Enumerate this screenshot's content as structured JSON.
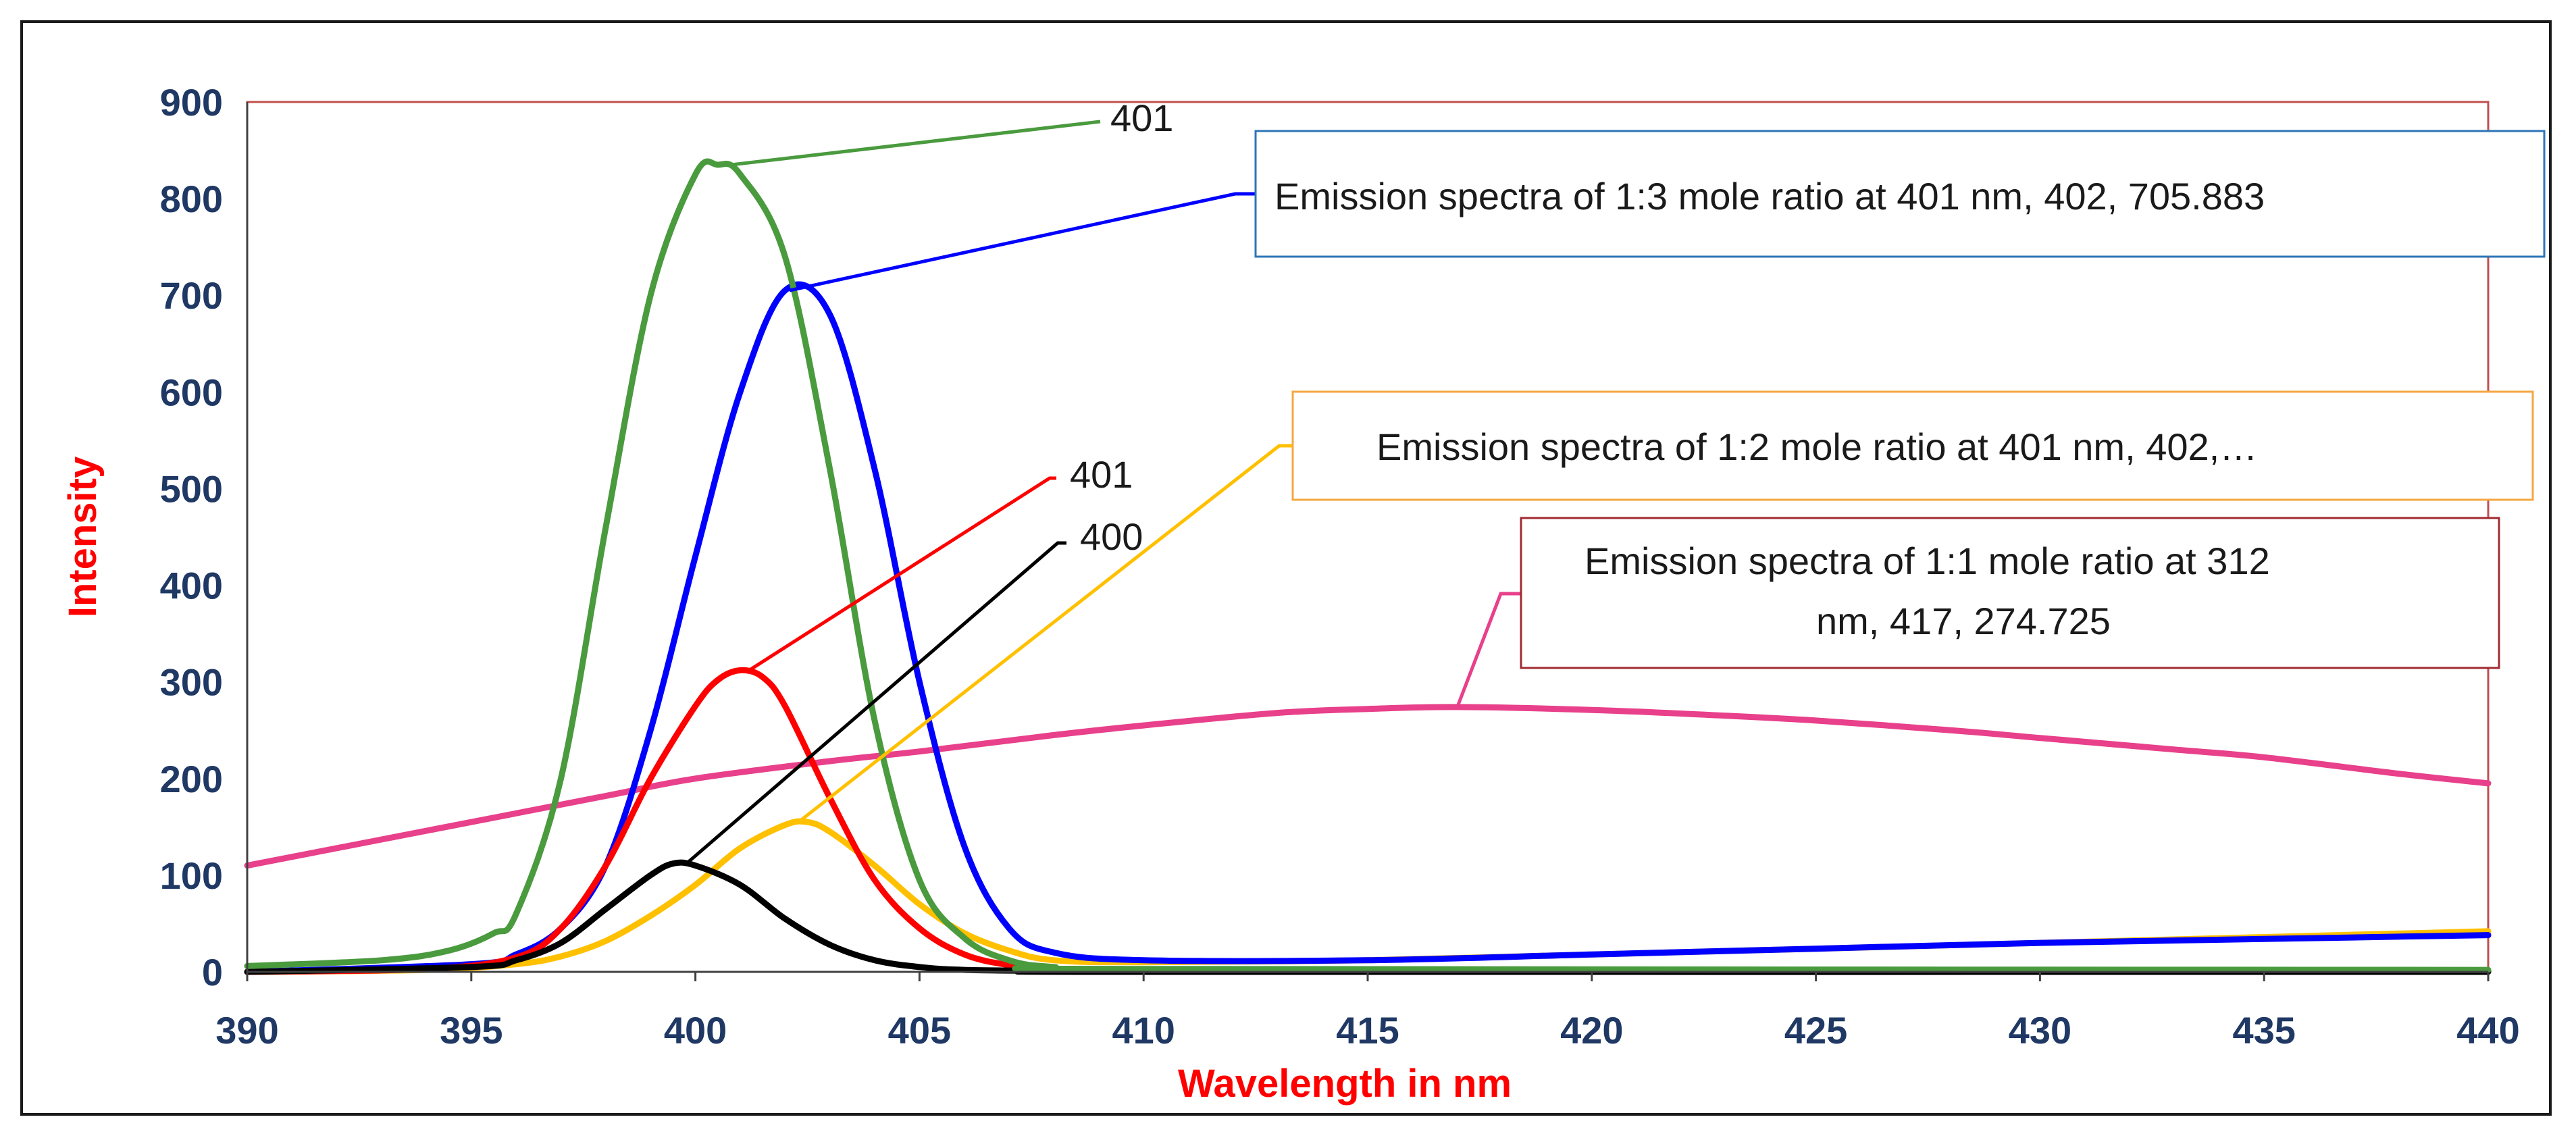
{
  "chart_data": {
    "type": "line",
    "title": "",
    "xlabel": "Wavelength in nm",
    "ylabel": "Intensity",
    "xlim": [
      390,
      440
    ],
    "ylim": [
      0,
      900
    ],
    "xticks": [
      390,
      395,
      400,
      405,
      410,
      415,
      420,
      425,
      430,
      435,
      440
    ],
    "yticks": [
      0,
      100,
      200,
      300,
      400,
      500,
      600,
      700,
      800,
      900
    ],
    "legend": "none",
    "series": [
      {
        "name": "1:1 mole ratio",
        "color": "#e8408a",
        "x": [
          390,
          395,
          398,
          400,
          403,
          405,
          408,
          410,
          413,
          415,
          417,
          420,
          423,
          425,
          428,
          430,
          433,
          435,
          438,
          440
        ],
        "y": [
          110,
          155,
          182,
          200,
          218,
          228,
          245,
          255,
          268,
          272,
          274,
          271,
          265,
          260,
          250,
          242,
          230,
          222,
          205,
          195
        ]
      },
      {
        "name": "1:2 mole ratio",
        "color": "#ffc000",
        "x": [
          390,
          394,
          396,
          397,
          398,
          399,
          400,
          401,
          402,
          402.5,
          403,
          404,
          405,
          406,
          407,
          408,
          410,
          415,
          420,
          425,
          430,
          435,
          440
        ],
        "y": [
          0,
          2,
          8,
          16,
          32,
          58,
          90,
          128,
          152,
          155,
          145,
          110,
          70,
          40,
          22,
          12,
          10,
          12,
          18,
          24,
          30,
          36,
          42
        ]
      },
      {
        "name": "1:3 mole ratio",
        "color": "#0000ff",
        "x": [
          390,
          395,
          396,
          397,
          398,
          399,
          400,
          401,
          402,
          403,
          404,
          405,
          406,
          407,
          408,
          410,
          415,
          420,
          425,
          430,
          435,
          440
        ],
        "y": [
          0,
          8,
          18,
          45,
          110,
          250,
          430,
          600,
          705,
          680,
          520,
          300,
          130,
          45,
          20,
          12,
          12,
          18,
          24,
          30,
          34,
          38
        ]
      },
      {
        "name": "401 red",
        "color": "#ff0000",
        "x": [
          390,
          394,
          396,
          397,
          398,
          399,
          400,
          400.5,
          401,
          401.5,
          402,
          403,
          404,
          405,
          406,
          407,
          408,
          410,
          440
        ],
        "y": [
          0,
          3,
          15,
          45,
          110,
          200,
          275,
          302,
          312,
          305,
          275,
          180,
          95,
          45,
          18,
          7,
          3,
          1,
          1
        ]
      },
      {
        "name": "400 black",
        "color": "#000000",
        "x": [
          390,
          395,
          396,
          397,
          398,
          399,
          399.5,
          400,
          401,
          402,
          403,
          404,
          405,
          406,
          408,
          410,
          440
        ],
        "y": [
          0,
          5,
          12,
          30,
          65,
          100,
          112,
          110,
          90,
          55,
          28,
          12,
          5,
          2,
          1,
          0,
          0
        ]
      },
      {
        "name": "401 green",
        "color": "#4a9a3e",
        "x": [
          390,
          393,
          394.5,
          395.5,
          396,
          397,
          398,
          399,
          400,
          400.5,
          401,
          402,
          403,
          404,
          405,
          406,
          407,
          408,
          410,
          440
        ],
        "y": [
          6,
          12,
          22,
          40,
          60,
          200,
          460,
          700,
          825,
          835,
          825,
          740,
          520,
          260,
          95,
          35,
          12,
          5,
          3,
          2
        ]
      }
    ],
    "annotations": [
      {
        "series": "401 green",
        "text": "401",
        "point": [
          400.8,
          835
        ]
      },
      {
        "series": "1:3 mole ratio",
        "text": "Emission spectra of 1:3 mole ratio at 401 nm, 402, 705.883",
        "point": [
          402.1,
          705
        ]
      },
      {
        "series": "401 red",
        "text": "401",
        "point": [
          401.2,
          312
        ]
      },
      {
        "series": "1:2 mole ratio",
        "text": "Emission spectra of 1:2 mole ratio at 401 nm, 402,…",
        "point": [
          402.3,
          155
        ]
      },
      {
        "series": "400 black",
        "text": "400",
        "point": [
          399.8,
          112
        ]
      },
      {
        "series": "1:1 mole ratio",
        "text": "Emission spectra of 1:1 mole ratio at 312 nm, 417, 274.725",
        "text_lines": [
          "Emission spectra of 1:1 mole ratio at 312",
          "nm, 417, 274.725"
        ],
        "point": [
          417,
          274
        ]
      }
    ]
  }
}
